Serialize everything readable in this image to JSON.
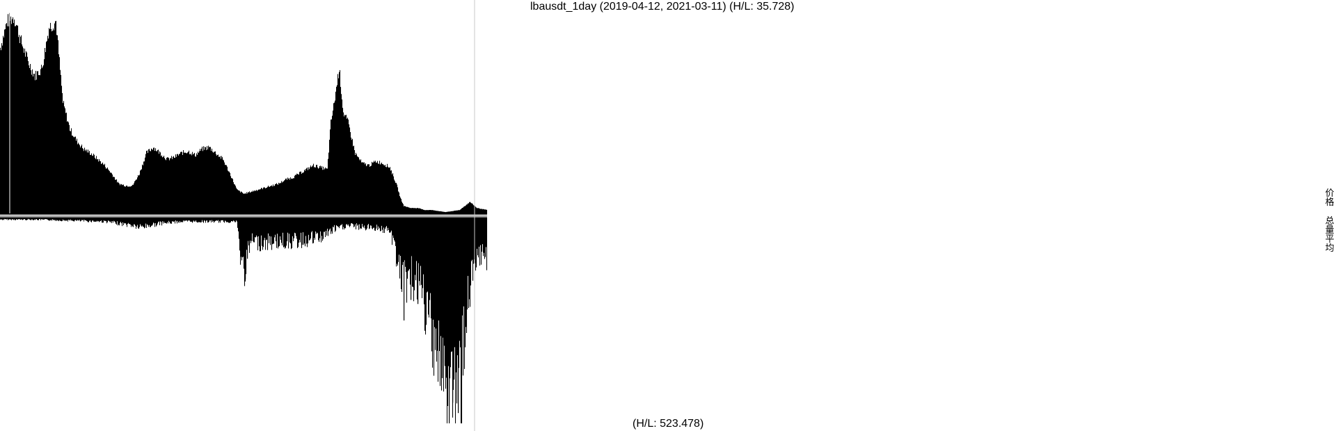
{
  "chart": {
    "title": "lbausdt_1day (2019-04-12, 2021-03-11) (H/L: 35.728)",
    "volume_hl_text": "(H/L: 523.478)",
    "legend": {
      "price_label": "价格",
      "volume_avg_label": "总量平均"
    },
    "colors": {
      "bars": "#000000",
      "background": "#ffffff",
      "cursor_line": "#c8c8c8"
    }
  },
  "chart_data": [
    {
      "type": "bar",
      "name": "price",
      "x_start": "2019-04-12",
      "x_end": "2021-03-11",
      "high_low_ratio": 35.728,
      "anchors": [
        [
          0,
          0.82
        ],
        [
          10,
          0.95
        ],
        [
          20,
          0.97
        ],
        [
          30,
          0.85
        ],
        [
          40,
          0.75
        ],
        [
          50,
          0.68
        ],
        [
          60,
          0.72
        ],
        [
          70,
          0.92
        ],
        [
          80,
          0.95
        ],
        [
          90,
          0.55
        ],
        [
          100,
          0.42
        ],
        [
          110,
          0.36
        ],
        [
          120,
          0.32
        ],
        [
          130,
          0.3
        ],
        [
          140,
          0.27
        ],
        [
          150,
          0.24
        ],
        [
          160,
          0.2
        ],
        [
          170,
          0.15
        ],
        [
          180,
          0.14
        ],
        [
          190,
          0.14
        ],
        [
          200,
          0.2
        ],
        [
          210,
          0.3
        ],
        [
          220,
          0.33
        ],
        [
          230,
          0.3
        ],
        [
          240,
          0.27
        ],
        [
          250,
          0.28
        ],
        [
          260,
          0.3
        ],
        [
          270,
          0.31
        ],
        [
          280,
          0.29
        ],
        [
          290,
          0.32
        ],
        [
          300,
          0.33
        ],
        [
          310,
          0.3
        ],
        [
          320,
          0.27
        ],
        [
          330,
          0.2
        ],
        [
          340,
          0.12
        ],
        [
          350,
          0.1
        ],
        [
          360,
          0.11
        ],
        [
          370,
          0.12
        ],
        [
          380,
          0.13
        ],
        [
          390,
          0.14
        ],
        [
          400,
          0.15
        ],
        [
          410,
          0.17
        ],
        [
          420,
          0.18
        ],
        [
          430,
          0.2
        ],
        [
          440,
          0.22
        ],
        [
          450,
          0.24
        ],
        [
          460,
          0.23
        ],
        [
          470,
          0.22
        ],
        [
          475,
          0.45
        ],
        [
          480,
          0.55
        ],
        [
          487,
          0.72
        ],
        [
          493,
          0.5
        ],
        [
          500,
          0.45
        ],
        [
          510,
          0.3
        ],
        [
          520,
          0.25
        ],
        [
          530,
          0.24
        ],
        [
          540,
          0.26
        ],
        [
          550,
          0.25
        ],
        [
          560,
          0.23
        ],
        [
          570,
          0.14
        ],
        [
          575,
          0.08
        ],
        [
          580,
          0.04
        ],
        [
          590,
          0.03
        ],
        [
          600,
          0.03
        ],
        [
          610,
          0.02
        ],
        [
          620,
          0.02
        ],
        [
          640,
          0.01
        ],
        [
          660,
          0.02
        ],
        [
          675,
          0.06
        ],
        [
          685,
          0.03
        ],
        [
          700,
          0.02
        ]
      ]
    },
    {
      "type": "bar",
      "name": "volume",
      "high_low_ratio": 523.478,
      "anchors": [
        [
          0,
          0.01
        ],
        [
          50,
          0.01
        ],
        [
          100,
          0.015
        ],
        [
          150,
          0.02
        ],
        [
          190,
          0.04
        ],
        [
          200,
          0.05
        ],
        [
          230,
          0.03
        ],
        [
          260,
          0.02
        ],
        [
          300,
          0.02
        ],
        [
          340,
          0.02
        ],
        [
          345,
          0.2
        ],
        [
          350,
          0.28
        ],
        [
          360,
          0.12
        ],
        [
          380,
          0.13
        ],
        [
          400,
          0.12
        ],
        [
          430,
          0.12
        ],
        [
          460,
          0.1
        ],
        [
          480,
          0.06
        ],
        [
          500,
          0.04
        ],
        [
          520,
          0.05
        ],
        [
          540,
          0.05
        ],
        [
          560,
          0.07
        ],
        [
          570,
          0.2
        ],
        [
          580,
          0.35
        ],
        [
          590,
          0.3
        ],
        [
          600,
          0.35
        ],
        [
          610,
          0.45
        ],
        [
          620,
          0.55
        ],
        [
          630,
          0.7
        ],
        [
          640,
          0.95
        ],
        [
          650,
          0.8
        ],
        [
          655,
          0.95
        ],
        [
          660,
          0.85
        ],
        [
          665,
          0.75
        ],
        [
          670,
          0.45
        ],
        [
          680,
          0.3
        ],
        [
          690,
          0.2
        ],
        [
          700,
          0.2
        ]
      ],
      "spikes": [
        [
          352,
          0.3
        ],
        [
          355,
          0.2
        ],
        [
          580,
          0.5
        ],
        [
          590,
          0.4
        ],
        [
          600,
          0.42
        ],
        [
          610,
          0.55
        ],
        [
          620,
          0.65
        ],
        [
          635,
          0.78
        ],
        [
          645,
          1.0
        ],
        [
          650,
          0.9
        ],
        [
          658,
          0.95
        ],
        [
          662,
          0.9
        ]
      ]
    }
  ]
}
